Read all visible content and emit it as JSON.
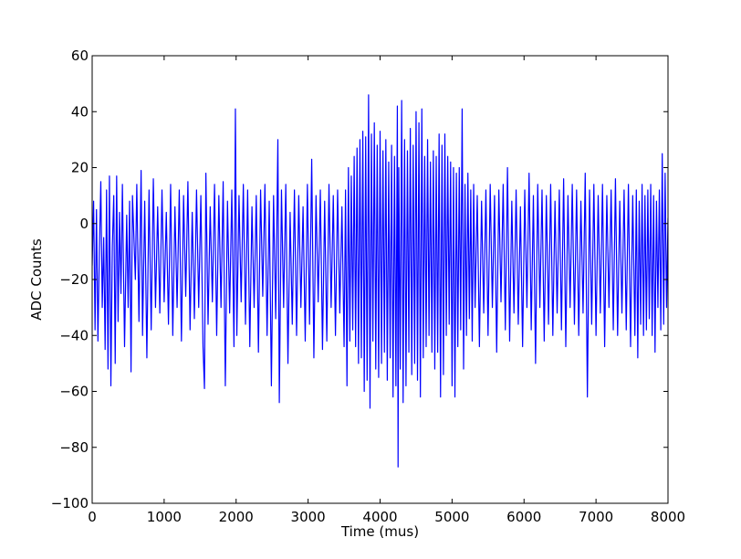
{
  "chart_data": {
    "type": "line",
    "title": "",
    "xlabel": "Time (mus)",
    "ylabel": "ADC Counts",
    "xlim": [
      0,
      8000
    ],
    "ylim": [
      -100,
      60
    ],
    "x_ticks": [
      0,
      1000,
      2000,
      3000,
      4000,
      5000,
      6000,
      7000,
      8000
    ],
    "y_ticks": [
      -100,
      -80,
      -60,
      -40,
      -20,
      0,
      20,
      40,
      60
    ],
    "y_tick_labels": [
      "−100",
      "−80",
      "−60",
      "−40",
      "−20",
      "0",
      "20",
      "40",
      "60"
    ],
    "grid": false,
    "legend": "none",
    "series_color": "#0000ff",
    "series": [
      {
        "points": [
          [
            0,
            -15
          ],
          [
            20,
            8
          ],
          [
            40,
            -38
          ],
          [
            60,
            5
          ],
          [
            80,
            -42
          ],
          [
            100,
            -10
          ],
          [
            120,
            15
          ],
          [
            140,
            -30
          ],
          [
            160,
            -5
          ],
          [
            180,
            -45
          ],
          [
            200,
            12
          ],
          [
            220,
            -52
          ],
          [
            240,
            17
          ],
          [
            260,
            -58
          ],
          [
            280,
            -8
          ],
          [
            300,
            10
          ],
          [
            320,
            -50
          ],
          [
            340,
            17
          ],
          [
            360,
            -35
          ],
          [
            380,
            4
          ],
          [
            400,
            -25
          ],
          [
            420,
            14
          ],
          [
            450,
            -44
          ],
          [
            480,
            3
          ],
          [
            500,
            -30
          ],
          [
            520,
            8
          ],
          [
            540,
            -53
          ],
          [
            560,
            10
          ],
          [
            600,
            -20
          ],
          [
            620,
            14
          ],
          [
            650,
            -35
          ],
          [
            680,
            19
          ],
          [
            700,
            -40
          ],
          [
            730,
            8
          ],
          [
            760,
            -48
          ],
          [
            790,
            12
          ],
          [
            820,
            -38
          ],
          [
            850,
            16
          ],
          [
            880,
            -30
          ],
          [
            910,
            6
          ],
          [
            940,
            -32
          ],
          [
            970,
            12
          ],
          [
            1000,
            -28
          ],
          [
            1030,
            4
          ],
          [
            1060,
            -36
          ],
          [
            1090,
            14
          ],
          [
            1120,
            -40
          ],
          [
            1150,
            6
          ],
          [
            1180,
            -30
          ],
          [
            1210,
            12
          ],
          [
            1240,
            -42
          ],
          [
            1270,
            10
          ],
          [
            1300,
            -26
          ],
          [
            1330,
            15
          ],
          [
            1360,
            -38
          ],
          [
            1390,
            4
          ],
          [
            1420,
            -34
          ],
          [
            1450,
            12
          ],
          [
            1480,
            -30
          ],
          [
            1510,
            10
          ],
          [
            1540,
            -44
          ],
          [
            1560,
            -59
          ],
          [
            1580,
            18
          ],
          [
            1610,
            -36
          ],
          [
            1640,
            6
          ],
          [
            1670,
            -28
          ],
          [
            1700,
            14
          ],
          [
            1730,
            -40
          ],
          [
            1760,
            10
          ],
          [
            1790,
            -30
          ],
          [
            1820,
            15
          ],
          [
            1850,
            -58
          ],
          [
            1880,
            8
          ],
          [
            1910,
            -32
          ],
          [
            1940,
            12
          ],
          [
            1970,
            -44
          ],
          [
            1990,
            41
          ],
          [
            2010,
            -40
          ],
          [
            2040,
            10
          ],
          [
            2070,
            -28
          ],
          [
            2100,
            14
          ],
          [
            2130,
            -36
          ],
          [
            2160,
            12
          ],
          [
            2190,
            -44
          ],
          [
            2220,
            6
          ],
          [
            2250,
            -30
          ],
          [
            2280,
            10
          ],
          [
            2310,
            -46
          ],
          [
            2340,
            12
          ],
          [
            2370,
            -26
          ],
          [
            2400,
            14
          ],
          [
            2430,
            -40
          ],
          [
            2460,
            8
          ],
          [
            2490,
            -58
          ],
          [
            2520,
            10
          ],
          [
            2550,
            -34
          ],
          [
            2580,
            30
          ],
          [
            2600,
            -64
          ],
          [
            2630,
            12
          ],
          [
            2660,
            -30
          ],
          [
            2690,
            14
          ],
          [
            2720,
            -50
          ],
          [
            2750,
            4
          ],
          [
            2780,
            -36
          ],
          [
            2810,
            12
          ],
          [
            2840,
            -40
          ],
          [
            2870,
            10
          ],
          [
            2900,
            -30
          ],
          [
            2930,
            6
          ],
          [
            2960,
            -42
          ],
          [
            2990,
            14
          ],
          [
            3020,
            -36
          ],
          [
            3050,
            23
          ],
          [
            3080,
            -48
          ],
          [
            3110,
            10
          ],
          [
            3140,
            -28
          ],
          [
            3170,
            12
          ],
          [
            3200,
            -45
          ],
          [
            3230,
            8
          ],
          [
            3260,
            -42
          ],
          [
            3290,
            14
          ],
          [
            3320,
            -30
          ],
          [
            3350,
            10
          ],
          [
            3380,
            -40
          ],
          [
            3410,
            12
          ],
          [
            3440,
            -32
          ],
          [
            3470,
            6
          ],
          [
            3500,
            -44
          ],
          [
            3520,
            12
          ],
          [
            3540,
            -58
          ],
          [
            3560,
            20
          ],
          [
            3580,
            -42
          ],
          [
            3600,
            17
          ],
          [
            3620,
            -38
          ],
          [
            3640,
            24
          ],
          [
            3660,
            -44
          ],
          [
            3680,
            27
          ],
          [
            3700,
            -50
          ],
          [
            3720,
            30
          ],
          [
            3740,
            -48
          ],
          [
            3760,
            33
          ],
          [
            3780,
            -60
          ],
          [
            3800,
            31
          ],
          [
            3820,
            -56
          ],
          [
            3840,
            46
          ],
          [
            3860,
            -66
          ],
          [
            3880,
            32
          ],
          [
            3900,
            -42
          ],
          [
            3920,
            36
          ],
          [
            3940,
            -52
          ],
          [
            3960,
            28
          ],
          [
            3980,
            -55
          ],
          [
            4000,
            33
          ],
          [
            4020,
            -50
          ],
          [
            4040,
            26
          ],
          [
            4060,
            -46
          ],
          [
            4080,
            30
          ],
          [
            4100,
            -56
          ],
          [
            4120,
            22
          ],
          [
            4140,
            -48
          ],
          [
            4160,
            28
          ],
          [
            4180,
            -62
          ],
          [
            4200,
            24
          ],
          [
            4220,
            -58
          ],
          [
            4240,
            42
          ],
          [
            4250,
            -87
          ],
          [
            4260,
            20
          ],
          [
            4280,
            -52
          ],
          [
            4300,
            44
          ],
          [
            4320,
            -64
          ],
          [
            4340,
            30
          ],
          [
            4360,
            -58
          ],
          [
            4380,
            26
          ],
          [
            4400,
            -46
          ],
          [
            4420,
            34
          ],
          [
            4440,
            -54
          ],
          [
            4460,
            28
          ],
          [
            4480,
            -50
          ],
          [
            4500,
            40
          ],
          [
            4520,
            -56
          ],
          [
            4540,
            36
          ],
          [
            4560,
            -62
          ],
          [
            4580,
            41
          ],
          [
            4600,
            -48
          ],
          [
            4620,
            24
          ],
          [
            4640,
            -44
          ],
          [
            4660,
            30
          ],
          [
            4680,
            -40
          ],
          [
            4700,
            22
          ],
          [
            4720,
            -46
          ],
          [
            4740,
            26
          ],
          [
            4760,
            -52
          ],
          [
            4780,
            24
          ],
          [
            4800,
            -46
          ],
          [
            4820,
            32
          ],
          [
            4840,
            -62
          ],
          [
            4860,
            28
          ],
          [
            4880,
            -54
          ],
          [
            4900,
            32
          ],
          [
            4920,
            -40
          ],
          [
            4940,
            24
          ],
          [
            4960,
            -36
          ],
          [
            4980,
            22
          ],
          [
            5000,
            -58
          ],
          [
            5020,
            20
          ],
          [
            5040,
            -62
          ],
          [
            5060,
            18
          ],
          [
            5080,
            -44
          ],
          [
            5100,
            20
          ],
          [
            5120,
            -38
          ],
          [
            5140,
            41
          ],
          [
            5160,
            -52
          ],
          [
            5180,
            14
          ],
          [
            5200,
            -40
          ],
          [
            5220,
            18
          ],
          [
            5240,
            -34
          ],
          [
            5260,
            12
          ],
          [
            5280,
            -42
          ],
          [
            5300,
            14
          ],
          [
            5320,
            -30
          ],
          [
            5350,
            10
          ],
          [
            5380,
            -44
          ],
          [
            5410,
            8
          ],
          [
            5440,
            -32
          ],
          [
            5470,
            12
          ],
          [
            5500,
            -40
          ],
          [
            5530,
            14
          ],
          [
            5560,
            -30
          ],
          [
            5590,
            10
          ],
          [
            5620,
            -46
          ],
          [
            5650,
            12
          ],
          [
            5680,
            -28
          ],
          [
            5710,
            14
          ],
          [
            5740,
            -38
          ],
          [
            5770,
            20
          ],
          [
            5800,
            -42
          ],
          [
            5830,
            8
          ],
          [
            5860,
            -32
          ],
          [
            5890,
            12
          ],
          [
            5920,
            -36
          ],
          [
            5950,
            6
          ],
          [
            5980,
            -44
          ],
          [
            6010,
            12
          ],
          [
            6040,
            -30
          ],
          [
            6070,
            18
          ],
          [
            6100,
            -38
          ],
          [
            6130,
            10
          ],
          [
            6160,
            -50
          ],
          [
            6190,
            14
          ],
          [
            6220,
            -30
          ],
          [
            6250,
            12
          ],
          [
            6280,
            -42
          ],
          [
            6310,
            10
          ],
          [
            6340,
            -36
          ],
          [
            6370,
            14
          ],
          [
            6400,
            -40
          ],
          [
            6430,
            8
          ],
          [
            6460,
            -32
          ],
          [
            6490,
            12
          ],
          [
            6520,
            -38
          ],
          [
            6550,
            16
          ],
          [
            6580,
            -44
          ],
          [
            6610,
            10
          ],
          [
            6640,
            -30
          ],
          [
            6670,
            14
          ],
          [
            6700,
            -36
          ],
          [
            6730,
            12
          ],
          [
            6760,
            -40
          ],
          [
            6790,
            8
          ],
          [
            6820,
            -32
          ],
          [
            6850,
            18
          ],
          [
            6880,
            -62
          ],
          [
            6910,
            12
          ],
          [
            6940,
            -36
          ],
          [
            6970,
            14
          ],
          [
            7000,
            -40
          ],
          [
            7030,
            10
          ],
          [
            7060,
            -32
          ],
          [
            7090,
            14
          ],
          [
            7120,
            -44
          ],
          [
            7150,
            10
          ],
          [
            7180,
            -30
          ],
          [
            7210,
            12
          ],
          [
            7240,
            -38
          ],
          [
            7270,
            16
          ],
          [
            7300,
            -40
          ],
          [
            7330,
            8
          ],
          [
            7360,
            -32
          ],
          [
            7390,
            12
          ],
          [
            7420,
            -38
          ],
          [
            7450,
            14
          ],
          [
            7480,
            -44
          ],
          [
            7510,
            10
          ],
          [
            7540,
            -40
          ],
          [
            7560,
            12
          ],
          [
            7580,
            -48
          ],
          [
            7600,
            8
          ],
          [
            7620,
            -36
          ],
          [
            7640,
            14
          ],
          [
            7660,
            -40
          ],
          [
            7680,
            10
          ],
          [
            7700,
            -38
          ],
          [
            7720,
            12
          ],
          [
            7740,
            -34
          ],
          [
            7760,
            14
          ],
          [
            7780,
            -40
          ],
          [
            7800,
            10
          ],
          [
            7820,
            -46
          ],
          [
            7840,
            8
          ],
          [
            7860,
            -30
          ],
          [
            7880,
            12
          ],
          [
            7900,
            -38
          ],
          [
            7920,
            25
          ],
          [
            7940,
            -36
          ],
          [
            7960,
            18
          ],
          [
            7980,
            -30
          ],
          [
            8000,
            2
          ]
        ]
      }
    ]
  }
}
